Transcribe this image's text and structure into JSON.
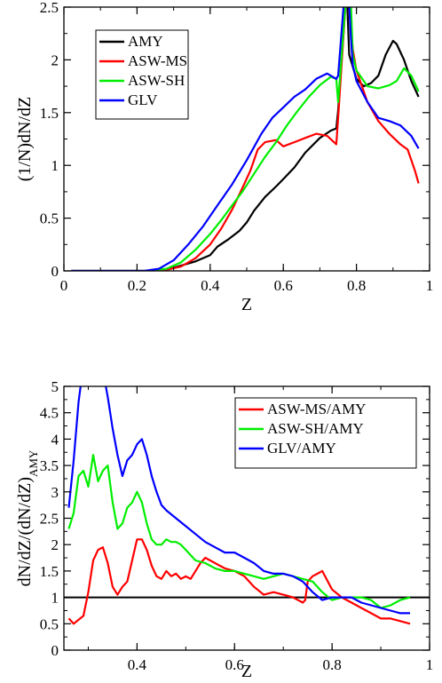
{
  "colors": {
    "AMY": "#000000",
    "ASW-MS": "#ff0000",
    "ASW-SH": "#00ee00",
    "GLV": "#0000ff"
  },
  "chart_data": [
    {
      "type": "line",
      "xlabel": "Z",
      "ylabel": "(1/N)dN/dZ",
      "xlim": [
        0,
        1
      ],
      "ylim": [
        0,
        2.5
      ],
      "xticks": [
        0,
        0.2,
        0.4,
        0.6,
        0.8,
        1
      ],
      "xtick_labels": [
        "0",
        "0.2",
        "0.4",
        "0.6",
        "0.8",
        "1"
      ],
      "yticks": [
        0,
        0.5,
        1,
        1.5,
        2,
        2.5
      ],
      "ytick_labels": [
        "0",
        "0.5",
        "1",
        "1.5",
        "2",
        "2.5"
      ],
      "legend_position": "top-left",
      "series": [
        {
          "name": "AMY",
          "color": "#000000",
          "x": [
            0.02,
            0.22,
            0.28,
            0.32,
            0.36,
            0.4,
            0.42,
            0.45,
            0.48,
            0.5,
            0.52,
            0.55,
            0.58,
            0.6,
            0.63,
            0.66,
            0.7,
            0.73,
            0.745,
            0.75,
            0.77,
            0.775,
            0.78,
            0.8,
            0.82,
            0.84,
            0.86,
            0.88,
            0.9,
            0.91,
            0.93,
            0.95,
            0.97
          ],
          "y": [
            0,
            0,
            0.01,
            0.05,
            0.09,
            0.15,
            0.23,
            0.3,
            0.38,
            0.46,
            0.57,
            0.7,
            0.8,
            0.87,
            0.98,
            1.12,
            1.26,
            1.33,
            1.35,
            1.52,
            2.52,
            2.52,
            2.05,
            1.82,
            1.75,
            1.78,
            1.85,
            2.05,
            2.18,
            2.15,
            2.0,
            1.8,
            1.65
          ]
        },
        {
          "name": "ASW-MS",
          "color": "#ff0000",
          "x": [
            0.02,
            0.22,
            0.28,
            0.32,
            0.36,
            0.4,
            0.43,
            0.46,
            0.49,
            0.51,
            0.53,
            0.55,
            0.58,
            0.6,
            0.63,
            0.66,
            0.69,
            0.72,
            0.745,
            0.75,
            0.77,
            0.78,
            0.79,
            0.8,
            0.83,
            0.86,
            0.89,
            0.92,
            0.94,
            0.96,
            0.97
          ],
          "y": [
            0,
            0,
            0.01,
            0.04,
            0.12,
            0.25,
            0.4,
            0.58,
            0.8,
            0.95,
            1.15,
            1.22,
            1.24,
            1.18,
            1.22,
            1.26,
            1.3,
            1.28,
            1.2,
            1.45,
            2.52,
            2.52,
            2.1,
            1.9,
            1.6,
            1.42,
            1.3,
            1.2,
            1.15,
            0.95,
            0.83
          ]
        },
        {
          "name": "ASW-SH",
          "color": "#00ee00",
          "x": [
            0.02,
            0.22,
            0.28,
            0.32,
            0.36,
            0.4,
            0.43,
            0.46,
            0.49,
            0.52,
            0.55,
            0.58,
            0.61,
            0.64,
            0.67,
            0.7,
            0.73,
            0.745,
            0.75,
            0.77,
            0.785,
            0.79,
            0.8,
            0.83,
            0.86,
            0.89,
            0.91,
            0.93,
            0.95,
            0.97
          ],
          "y": [
            0,
            0,
            0.02,
            0.08,
            0.2,
            0.35,
            0.48,
            0.62,
            0.76,
            0.92,
            1.08,
            1.22,
            1.38,
            1.52,
            1.65,
            1.76,
            1.84,
            1.82,
            1.6,
            2.52,
            2.52,
            2.05,
            1.9,
            1.75,
            1.73,
            1.76,
            1.8,
            1.92,
            1.85,
            1.7
          ]
        },
        {
          "name": "GLV",
          "color": "#0000ff",
          "x": [
            0.02,
            0.22,
            0.26,
            0.3,
            0.34,
            0.38,
            0.42,
            0.46,
            0.5,
            0.54,
            0.57,
            0.6,
            0.63,
            0.66,
            0.69,
            0.72,
            0.745,
            0.75,
            0.765,
            0.78,
            0.785,
            0.79,
            0.8,
            0.83,
            0.86,
            0.89,
            0.92,
            0.95,
            0.97
          ],
          "y": [
            0,
            0,
            0.02,
            0.1,
            0.25,
            0.42,
            0.62,
            0.82,
            1.05,
            1.3,
            1.45,
            1.55,
            1.65,
            1.72,
            1.82,
            1.87,
            1.82,
            1.85,
            2.52,
            2.52,
            2.2,
            1.95,
            1.8,
            1.6,
            1.45,
            1.42,
            1.38,
            1.28,
            1.16
          ]
        }
      ]
    },
    {
      "type": "line",
      "xlabel": "Z",
      "ylabel": "dN/dZ/(dN/dZ)",
      "ylabel_subscript": "AMY",
      "xlim": [
        0.25,
        1
      ],
      "ylim": [
        0,
        5
      ],
      "xticks": [
        0.4,
        0.6,
        0.8,
        1
      ],
      "xtick_labels": [
        "0.4",
        "0.6",
        "0.8",
        "1"
      ],
      "yticks": [
        0,
        0.5,
        1,
        1.5,
        2,
        2.5,
        3,
        3.5,
        4,
        4.5,
        5
      ],
      "ytick_labels": [
        "0",
        "0.5",
        "1",
        "1.5",
        "2",
        "2.5",
        "3",
        "3.5",
        "4",
        "4.5",
        "5"
      ],
      "legend_position": "top-right",
      "reference_line": {
        "y": 1,
        "color": "#000000"
      },
      "series": [
        {
          "name": "ASW-MS/AMY",
          "color": "#ff0000",
          "x": [
            0.26,
            0.27,
            0.29,
            0.3,
            0.31,
            0.32,
            0.33,
            0.34,
            0.35,
            0.36,
            0.37,
            0.38,
            0.39,
            0.4,
            0.41,
            0.42,
            0.43,
            0.44,
            0.45,
            0.46,
            0.47,
            0.48,
            0.49,
            0.5,
            0.51,
            0.52,
            0.53,
            0.54,
            0.55,
            0.56,
            0.57,
            0.58,
            0.6,
            0.62,
            0.64,
            0.66,
            0.68,
            0.7,
            0.72,
            0.74,
            0.745,
            0.75,
            0.76,
            0.77,
            0.78,
            0.8,
            0.82,
            0.84,
            0.86,
            0.88,
            0.9,
            0.92,
            0.94,
            0.96
          ],
          "y": [
            0.6,
            0.5,
            0.65,
            1.1,
            1.7,
            1.9,
            1.95,
            1.65,
            1.2,
            1.05,
            1.2,
            1.3,
            1.7,
            2.1,
            2.1,
            1.9,
            1.6,
            1.4,
            1.35,
            1.5,
            1.4,
            1.45,
            1.35,
            1.4,
            1.35,
            1.5,
            1.65,
            1.75,
            1.7,
            1.65,
            1.6,
            1.55,
            1.5,
            1.4,
            1.2,
            1.05,
            1.1,
            1.05,
            1.0,
            0.9,
            0.95,
            1.3,
            1.4,
            1.45,
            1.5,
            1.15,
            1.0,
            0.9,
            0.8,
            0.7,
            0.6,
            0.6,
            0.55,
            0.5
          ]
        },
        {
          "name": "ASW-SH/AMY",
          "color": "#00ee00",
          "x": [
            0.26,
            0.27,
            0.28,
            0.29,
            0.3,
            0.31,
            0.32,
            0.33,
            0.34,
            0.35,
            0.36,
            0.37,
            0.38,
            0.39,
            0.4,
            0.41,
            0.42,
            0.43,
            0.44,
            0.45,
            0.46,
            0.47,
            0.48,
            0.49,
            0.5,
            0.52,
            0.54,
            0.56,
            0.58,
            0.6,
            0.62,
            0.64,
            0.66,
            0.68,
            0.7,
            0.72,
            0.74,
            0.76,
            0.78,
            0.8,
            0.82,
            0.84,
            0.86,
            0.88,
            0.9,
            0.92,
            0.94,
            0.96
          ],
          "y": [
            2.3,
            2.6,
            3.3,
            3.4,
            3.1,
            3.7,
            3.2,
            3.4,
            3.5,
            2.8,
            2.3,
            2.4,
            2.7,
            2.8,
            3.0,
            2.8,
            2.4,
            2.1,
            2.0,
            2.0,
            2.1,
            2.05,
            2.05,
            2.0,
            1.9,
            1.7,
            1.65,
            1.55,
            1.5,
            1.5,
            1.45,
            1.4,
            1.35,
            1.4,
            1.45,
            1.4,
            1.35,
            1.3,
            1.1,
            0.95,
            1.0,
            1.0,
            1.0,
            0.95,
            0.8,
            0.85,
            0.95,
            1.0
          ]
        },
        {
          "name": "GLV/AMY",
          "color": "#0000ff",
          "x": [
            0.26,
            0.27,
            0.28,
            0.285,
            0.29,
            0.335,
            0.34,
            0.35,
            0.36,
            0.37,
            0.38,
            0.39,
            0.4,
            0.41,
            0.42,
            0.43,
            0.44,
            0.45,
            0.46,
            0.48,
            0.5,
            0.52,
            0.54,
            0.56,
            0.58,
            0.6,
            0.62,
            0.64,
            0.66,
            0.68,
            0.7,
            0.72,
            0.74,
            0.76,
            0.78,
            0.8,
            0.82,
            0.84,
            0.86,
            0.88,
            0.9,
            0.92,
            0.94,
            0.96
          ],
          "y": [
            2.7,
            3.6,
            4.7,
            5.05,
            5.05,
            5.05,
            4.8,
            4.2,
            3.7,
            3.3,
            3.6,
            3.7,
            3.9,
            4.0,
            3.7,
            3.3,
            3.0,
            2.75,
            2.65,
            2.5,
            2.35,
            2.2,
            2.05,
            1.95,
            1.85,
            1.85,
            1.75,
            1.65,
            1.5,
            1.45,
            1.45,
            1.4,
            1.3,
            1.1,
            0.95,
            1.0,
            1.0,
            1.0,
            0.9,
            0.85,
            0.8,
            0.75,
            0.7,
            0.7
          ]
        }
      ]
    }
  ]
}
